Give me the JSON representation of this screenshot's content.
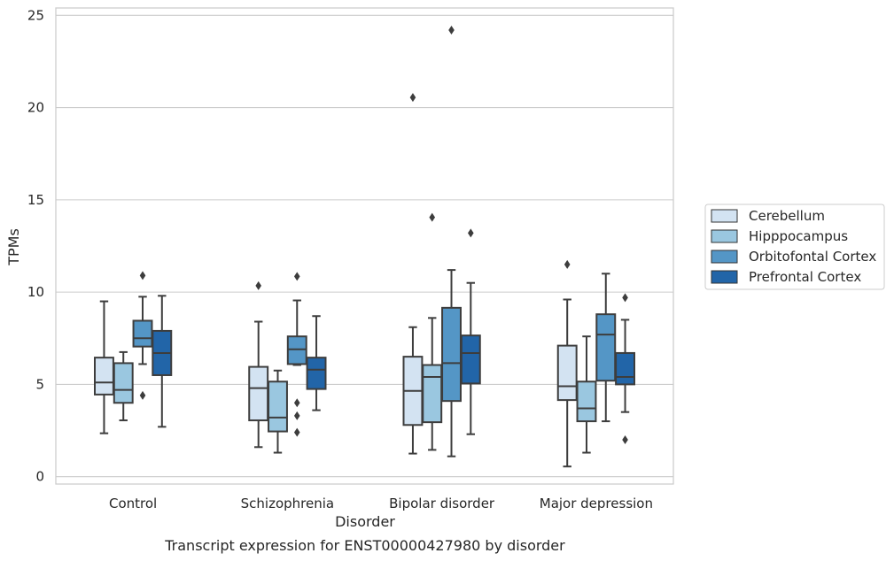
{
  "chart_data": {
    "type": "box",
    "title": "",
    "caption": "Transcript expression for ENST00000427980 by disorder",
    "xlabel": "Disorder",
    "ylabel": "TPMs",
    "ylim": [
      -0.4,
      25.4
    ],
    "yticks": [
      0,
      5,
      10,
      15,
      20,
      25
    ],
    "grid": "horizontal",
    "legend_position": "right",
    "categories": [
      "Control",
      "Schizophrenia",
      "Bipolar disorder",
      "Major depression"
    ],
    "series": [
      {
        "name": "Cerebellum",
        "color": "#d3e3f2",
        "boxes": [
          {
            "whislo": 2.35,
            "q1": 4.45,
            "med": 5.1,
            "q3": 6.45,
            "whishi": 9.5,
            "fliers": []
          },
          {
            "whislo": 1.6,
            "q1": 3.05,
            "med": 4.8,
            "q3": 5.95,
            "whishi": 8.4,
            "fliers": [
              10.35
            ]
          },
          {
            "whislo": 1.25,
            "q1": 2.8,
            "med": 4.65,
            "q3": 6.5,
            "whishi": 8.1,
            "fliers": [
              20.55
            ]
          },
          {
            "whislo": 0.55,
            "q1": 4.15,
            "med": 4.9,
            "q3": 7.1,
            "whishi": 9.6,
            "fliers": [
              11.5
            ]
          }
        ]
      },
      {
        "name": "Hipppocampus",
        "color": "#9ac7e0",
        "boxes": [
          {
            "whislo": 3.05,
            "q1": 4.0,
            "med": 4.7,
            "q3": 6.15,
            "whishi": 6.75,
            "fliers": []
          },
          {
            "whislo": 1.3,
            "q1": 2.45,
            "med": 3.2,
            "q3": 5.15,
            "whishi": 5.75,
            "fliers": []
          },
          {
            "whislo": 1.45,
            "q1": 2.95,
            "med": 5.4,
            "q3": 6.05,
            "whishi": 8.6,
            "fliers": [
              14.05
            ]
          },
          {
            "whislo": 1.3,
            "q1": 3.0,
            "med": 3.7,
            "q3": 5.15,
            "whishi": 7.6,
            "fliers": []
          }
        ]
      },
      {
        "name": "Orbitofontal Cortex",
        "color": "#5496c6",
        "boxes": [
          {
            "whislo": 6.1,
            "q1": 7.05,
            "med": 7.5,
            "q3": 8.45,
            "whishi": 9.75,
            "fliers": [
              10.9,
              4.4
            ]
          },
          {
            "whislo": 6.05,
            "q1": 6.1,
            "med": 6.9,
            "q3": 7.6,
            "whishi": 9.55,
            "fliers": [
              10.85,
              4.0,
              3.3,
              2.4
            ]
          },
          {
            "whislo": 1.1,
            "q1": 4.1,
            "med": 6.15,
            "q3": 9.15,
            "whishi": 11.2,
            "fliers": [
              24.2
            ]
          },
          {
            "whislo": 3.0,
            "q1": 5.2,
            "med": 7.7,
            "q3": 8.8,
            "whishi": 11.0,
            "fliers": []
          }
        ]
      },
      {
        "name": "Prefrontal Cortex",
        "color": "#2265a8",
        "boxes": [
          {
            "whislo": 2.7,
            "q1": 5.5,
            "med": 6.7,
            "q3": 7.9,
            "whishi": 9.8,
            "fliers": []
          },
          {
            "whislo": 3.6,
            "q1": 4.75,
            "med": 5.8,
            "q3": 6.45,
            "whishi": 8.7,
            "fliers": []
          },
          {
            "whislo": 2.3,
            "q1": 5.05,
            "med": 6.7,
            "q3": 7.65,
            "whishi": 10.5,
            "fliers": [
              13.2
            ]
          },
          {
            "whislo": 3.5,
            "q1": 5.0,
            "med": 5.4,
            "q3": 6.7,
            "whishi": 8.5,
            "fliers": [
              9.7,
              2.0
            ]
          }
        ]
      }
    ]
  }
}
